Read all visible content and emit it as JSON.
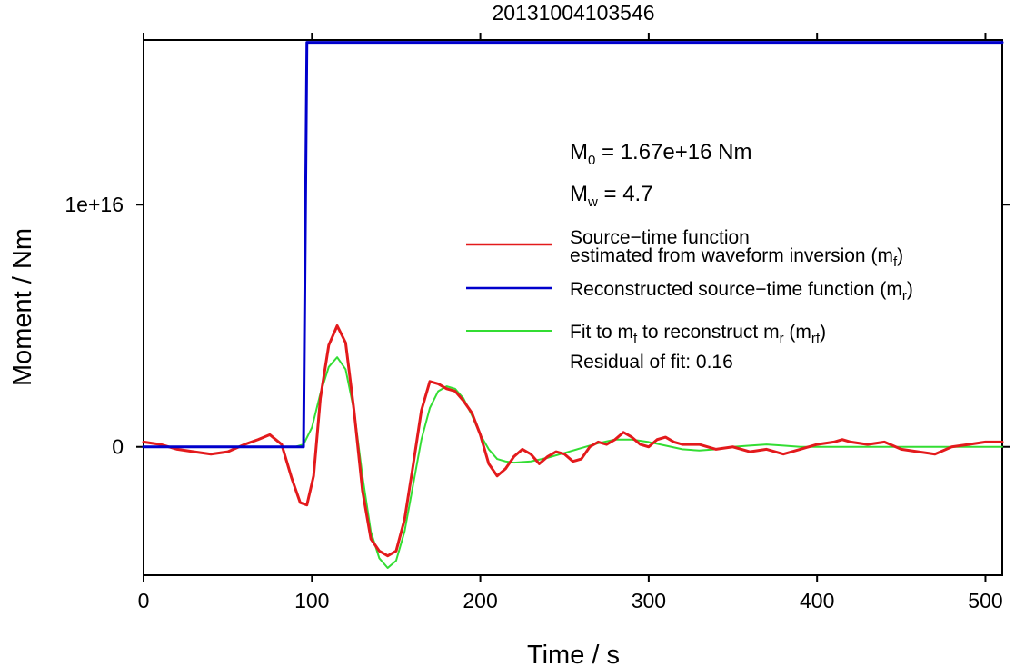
{
  "chart_data": {
    "type": "line",
    "title": "20131004103546",
    "xlabel": "Time / s",
    "ylabel": "Moment / Nm",
    "xlim": [
      0,
      510
    ],
    "ylim": [
      -5300000000000000.0,
      1.68e+16
    ],
    "x_ticks": [
      0,
      100,
      200,
      300,
      400,
      500
    ],
    "x_tick_labels": [
      "0",
      "100",
      "200",
      "300",
      "400",
      "500"
    ],
    "y_ticks": [
      0,
      1e+16
    ],
    "y_tick_labels": [
      "0",
      "1e+16"
    ],
    "grid": false,
    "legend_position": "right",
    "annotations": {
      "m0_prefix": "M",
      "m0_sub": "0",
      "m0_value": " = 1.67e+16 Nm",
      "mw_prefix": "M",
      "mw_sub": "w",
      "mw_value": " = 4.7",
      "residual": "Residual of fit: 0.16"
    },
    "legend": {
      "red_line1": "Source−time function",
      "red_line2": "estimated from waveform inversion (m",
      "red_sub": "f",
      "red_close": ")",
      "blue_text": "Reconstructed source−time function (m",
      "blue_sub": "r",
      "blue_close": ")",
      "green_text1": "Fit to m",
      "green_sub1": "f",
      "green_text2": " to reconstruct m",
      "green_sub2": "r",
      "green_text3": " (m",
      "green_sub3": "rf",
      "green_close": ")"
    },
    "series": [
      {
        "name": "Source−time function estimated from waveform inversion (mf)",
        "color": "#e31a1c",
        "x": [
          0,
          10,
          20,
          30,
          40,
          50,
          60,
          68,
          75,
          82,
          88,
          93,
          97,
          101,
          105,
          110,
          115,
          120,
          125,
          130,
          135,
          140,
          145,
          150,
          155,
          160,
          165,
          170,
          175,
          180,
          185,
          190,
          195,
          200,
          205,
          210,
          215,
          220,
          225,
          230,
          235,
          240,
          245,
          250,
          255,
          260,
          265,
          270,
          275,
          280,
          285,
          290,
          295,
          300,
          305,
          310,
          315,
          320,
          330,
          340,
          350,
          360,
          370,
          380,
          390,
          400,
          410,
          415,
          420,
          430,
          440,
          450,
          460,
          470,
          480,
          490,
          500,
          510
        ],
        "y": [
          200000000000000.0,
          100000000000000.0,
          -100000000000000.0,
          -200000000000000.0,
          -300000000000000.0,
          -200000000000000.0,
          100000000000000.0,
          300000000000000.0,
          500000000000000.0,
          100000000000000.0,
          -1300000000000000.0,
          -2300000000000000.0,
          -2400000000000000.0,
          -1200000000000000.0,
          2000000000000000.0,
          4200000000000000.0,
          5000000000000000.0,
          4300000000000000.0,
          1500000000000000.0,
          -1800000000000000.0,
          -3800000000000000.0,
          -4300000000000000.0,
          -4500000000000000.0,
          -4300000000000000.0,
          -3000000000000000.0,
          -800000000000000.0,
          1500000000000000.0,
          2700000000000000.0,
          2600000000000000.0,
          2400000000000000.0,
          2300000000000000.0,
          1900000000000000.0,
          1400000000000000.0,
          500000000000000.0,
          -700000000000000.0,
          -1200000000000000.0,
          -900000000000000.0,
          -400000000000000.0,
          -100000000000000.0,
          -300000000000000.0,
          -700000000000000.0,
          -400000000000000.0,
          -200000000000000.0,
          -300000000000000.0,
          -600000000000000.0,
          -500000000000000.0,
          0.0,
          200000000000000.0,
          100000000000000.0,
          300000000000000.0,
          600000000000000.0,
          400000000000000.0,
          100000000000000.0,
          0.0,
          300000000000000.0,
          400000000000000.0,
          200000000000000.0,
          100000000000000.0,
          100000000000000.0,
          -100000000000000.0,
          0.0,
          -200000000000000.0,
          -100000000000000.0,
          -300000000000000.0,
          -100000000000000.0,
          100000000000000.0,
          200000000000000.0,
          300000000000000.0,
          200000000000000.0,
          100000000000000.0,
          200000000000000.0,
          -100000000000000.0,
          -200000000000000.0,
          -300000000000000.0,
          0.0,
          100000000000000.0,
          200000000000000.0,
          200000000000000.0
        ]
      },
      {
        "name": "Reconstructed source−time function (mr)",
        "color": "#0000cc",
        "x": [
          0,
          95,
          97,
          510
        ],
        "y": [
          0,
          0,
          1.67e+16,
          1.67e+16
        ]
      },
      {
        "name": "Fit to mf to reconstruct mr (mrf)",
        "color": "#33dd33",
        "x": [
          0,
          90,
          95,
          100,
          105,
          110,
          115,
          120,
          125,
          130,
          135,
          140,
          145,
          150,
          155,
          160,
          165,
          170,
          175,
          180,
          185,
          190,
          195,
          200,
          205,
          210,
          215,
          220,
          230,
          240,
          250,
          260,
          270,
          280,
          290,
          300,
          310,
          320,
          330,
          340,
          350,
          360,
          370,
          380,
          390,
          400,
          420,
          450,
          480,
          510
        ],
        "y": [
          0,
          0,
          100000000000000.0,
          800000000000000.0,
          2200000000000000.0,
          3300000000000000.0,
          3700000000000000.0,
          3200000000000000.0,
          1500000000000000.0,
          -1200000000000000.0,
          -3500000000000000.0,
          -4600000000000000.0,
          -5000000000000000.0,
          -4700000000000000.0,
          -3500000000000000.0,
          -1600000000000000.0,
          300000000000000.0,
          1600000000000000.0,
          2300000000000000.0,
          2500000000000000.0,
          2400000000000000.0,
          2000000000000000.0,
          1300000000000000.0,
          500000000000000.0,
          -100000000000000.0,
          -500000000000000.0,
          -600000000000000.0,
          -650000000000000.0,
          -600000000000000.0,
          -450000000000000.0,
          -250000000000000.0,
          -50000000000000.0,
          150000000000000.0,
          300000000000000.0,
          300000000000000.0,
          200000000000000.0,
          50000000000000.0,
          -100000000000000.0,
          -150000000000000.0,
          -100000000000000.0,
          0.0,
          50000000000000.0,
          100000000000000.0,
          50000000000000.0,
          0.0,
          0.0,
          0.0,
          0.0,
          0.0,
          0.0
        ]
      }
    ]
  }
}
